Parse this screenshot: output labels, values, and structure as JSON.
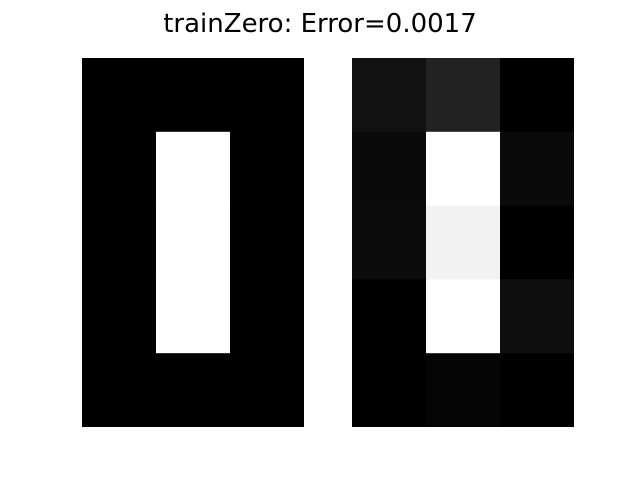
{
  "title": "trainZero: Error=0.0017",
  "chart_data": [
    {
      "type": "heatmap",
      "rows": 5,
      "cols": 3,
      "colormap": "gray",
      "values": [
        [
          0.0,
          0.0,
          0.0
        ],
        [
          0.0,
          1.0,
          0.0
        ],
        [
          0.0,
          1.0,
          0.0
        ],
        [
          0.0,
          1.0,
          0.0
        ],
        [
          0.0,
          0.0,
          0.0
        ]
      ]
    },
    {
      "type": "heatmap",
      "rows": 5,
      "cols": 3,
      "colormap": "gray",
      "values": [
        [
          0.067,
          0.133,
          0.0
        ],
        [
          0.039,
          1.0,
          0.039
        ],
        [
          0.043,
          0.949,
          0.0
        ],
        [
          0.0,
          1.0,
          0.059
        ],
        [
          0.0,
          0.016,
          0.0
        ]
      ]
    }
  ]
}
